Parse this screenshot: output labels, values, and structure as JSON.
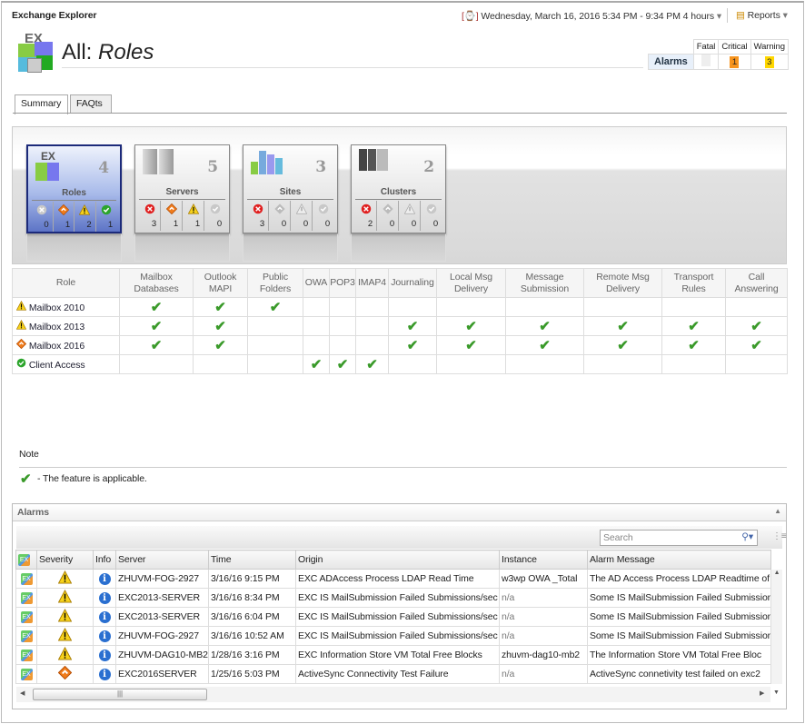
{
  "app": {
    "title": "Exchange Explorer",
    "time_range": "Wednesday, March 16, 2016 5:34 PM - 9:34 PM 4 hours",
    "reports_label": "Reports"
  },
  "header": {
    "title_prefix": "All:",
    "title_item": "Roles",
    "logo_text": "EX"
  },
  "alarm_summary": {
    "label": "Alarms",
    "headers": [
      "Fatal",
      "Critical",
      "Warning"
    ],
    "fatal": "",
    "critical": "1",
    "warning": "3",
    "critical_color": "#f7941d",
    "warning_color": "#ffd700"
  },
  "tabs": [
    {
      "label": "Summary",
      "active": true
    },
    {
      "label": "FAQts",
      "active": false
    }
  ],
  "tiles": [
    {
      "name": "Roles",
      "count": "4",
      "selected": true,
      "icons": [
        "gray",
        "crit",
        "warn",
        "ok"
      ],
      "values": [
        "0",
        "1",
        "2",
        "1"
      ]
    },
    {
      "name": "Servers",
      "count": "5",
      "selected": false,
      "icons": [
        "fatal",
        "crit",
        "warn",
        "grayok"
      ],
      "values": [
        "3",
        "1",
        "1",
        "0"
      ]
    },
    {
      "name": "Sites",
      "count": "3",
      "selected": false,
      "icons": [
        "fatal",
        "grayd",
        "grayw",
        "grayok"
      ],
      "values": [
        "3",
        "0",
        "0",
        "0"
      ]
    },
    {
      "name": "Clusters",
      "count": "2",
      "selected": false,
      "icons": [
        "fatal",
        "grayd",
        "grayw",
        "grayok"
      ],
      "values": [
        "2",
        "0",
        "0",
        "0"
      ]
    }
  ],
  "roles_table": {
    "headers": [
      "Role",
      "Mailbox Databases",
      "Outlook MAPI",
      "Public Folders",
      "OWA",
      "POP3",
      "IMAP4",
      "Journaling",
      "Local Msg Delivery",
      "Message Submission",
      "Remote Msg Delivery",
      "Transport Rules",
      "Call Answering"
    ],
    "rows": [
      {
        "role": "Mailbox 2010",
        "status": "warn",
        "features": [
          1,
          1,
          1,
          0,
          0,
          0,
          0,
          0,
          0,
          0,
          0,
          0
        ]
      },
      {
        "role": "Mailbox 2013",
        "status": "warn",
        "features": [
          1,
          1,
          0,
          0,
          0,
          0,
          1,
          1,
          1,
          1,
          1,
          1
        ]
      },
      {
        "role": "Mailbox 2016",
        "status": "crit",
        "features": [
          1,
          1,
          0,
          0,
          0,
          0,
          1,
          1,
          1,
          1,
          1,
          1
        ]
      },
      {
        "role": "Client Access",
        "status": "ok",
        "features": [
          0,
          0,
          0,
          1,
          1,
          1,
          0,
          0,
          0,
          0,
          0,
          0
        ]
      }
    ]
  },
  "note": {
    "heading": "Note",
    "text": "- The feature is applicable."
  },
  "alarms": {
    "title": "Alarms",
    "search_placeholder": "Search",
    "headers": [
      "",
      "Severity",
      "Info",
      "Server",
      "Time",
      "Origin",
      "Instance",
      "Alarm Message"
    ],
    "rows": [
      {
        "severity": "warn",
        "server": "ZHUVM-FOG-2927",
        "time": "3/16/16 9:15 PM",
        "origin": "EXC ADAccess Process LDAP Read Time",
        "instance": "w3wp OWA _Total",
        "message": "The AD Access Process LDAP Readtime of"
      },
      {
        "severity": "warn",
        "server": "EXC2013-SERVER",
        "time": "3/16/16 8:34 PM",
        "origin": "EXC IS MailSubmission Failed Submissions/sec",
        "instance": "n/a",
        "message": "Some IS MailSubmission Failed Submission"
      },
      {
        "severity": "warn",
        "server": "EXC2013-SERVER",
        "time": "3/16/16 6:04 PM",
        "origin": "EXC IS MailSubmission Failed Submissions/sec",
        "instance": "n/a",
        "message": "Some IS MailSubmission Failed Submission"
      },
      {
        "severity": "warn",
        "server": "ZHUVM-FOG-2927",
        "time": "3/16/16 10:52 AM",
        "origin": "EXC IS MailSubmission Failed Submissions/sec",
        "instance": "n/a",
        "message": "Some IS MailSubmission Failed Submission"
      },
      {
        "severity": "warn",
        "server": "ZHUVM-DAG10-MB2",
        "time": "1/28/16 3:16 PM",
        "origin": "EXC Information Store VM Total Free Blocks",
        "instance": "zhuvm-dag10-mb2",
        "message": "The Information Store VM Total Free Bloc"
      },
      {
        "severity": "crit",
        "server": "EXC2016SERVER",
        "time": "1/25/16 5:03 PM",
        "origin": "ActiveSync Connectivity Test Failure",
        "instance": "n/a",
        "message": "ActiveSync connetivity test failed on exc2"
      }
    ]
  }
}
